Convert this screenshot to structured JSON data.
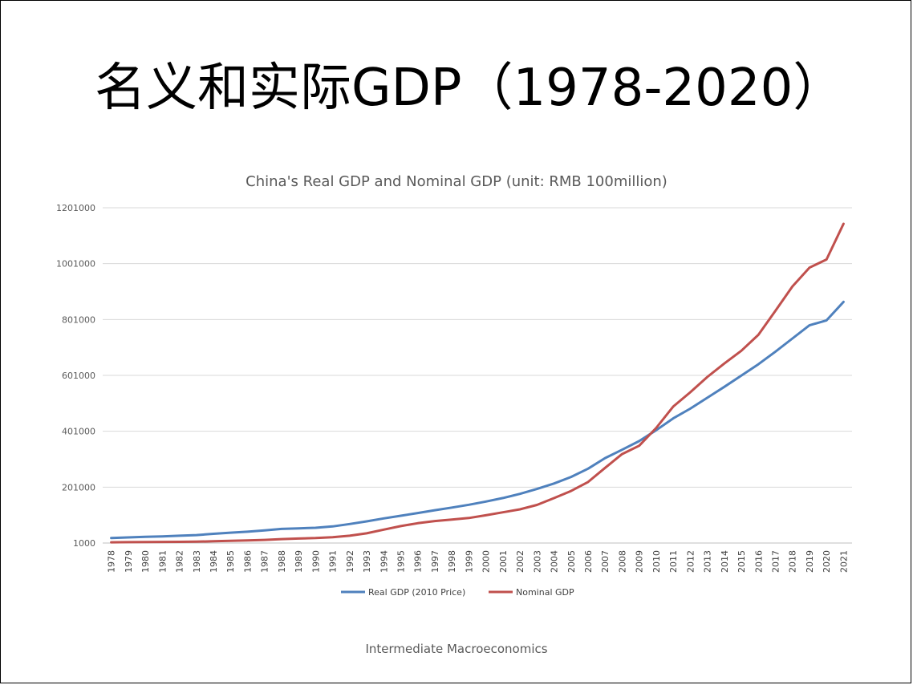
{
  "slide": {
    "title": "名义和实际GDP（1978-2020）",
    "footer": "Intermediate Macroeconomics"
  },
  "chart_data": {
    "type": "line",
    "title": "China's Real GDP and Nominal GDP (unit: RMB 100million)",
    "xlabel": "",
    "ylabel": "",
    "ylim": [
      1000,
      1201000
    ],
    "yticks": [
      1000,
      201000,
      401000,
      601000,
      801000,
      1001000,
      1201000
    ],
    "grid": true,
    "legend": "bottom",
    "categories": [
      "1978",
      "1979",
      "1980",
      "1981",
      "1982",
      "1983",
      "1984",
      "1985",
      "1986",
      "1987",
      "1988",
      "1989",
      "1990",
      "1991",
      "1992",
      "1993",
      "1994",
      "1995",
      "1996",
      "1997",
      "1998",
      "1999",
      "2000",
      "2001",
      "2002",
      "2003",
      "2004",
      "2005",
      "2006",
      "2007",
      "2008",
      "2009",
      "2010",
      "2011",
      "2012",
      "2013",
      "2014",
      "2015",
      "2016",
      "2017",
      "2018",
      "2019",
      "2020",
      "2021"
    ],
    "series": [
      {
        "name": "Real GDP (2010 Price)",
        "color": "#4F81BD",
        "values": [
          19000,
          21000,
          23000,
          24500,
          27000,
          29500,
          34000,
          38000,
          41500,
          46000,
          51500,
          53500,
          55500,
          60500,
          69000,
          78500,
          89000,
          98500,
          108500,
          118500,
          128000,
          138000,
          149500,
          162000,
          177000,
          194500,
          214000,
          237500,
          267000,
          305000,
          335000,
          366000,
          405000,
          447000,
          482000,
          521000,
          560000,
          600000,
          641000,
          686000,
          733000,
          780000,
          798000,
          864000
        ]
      },
      {
        "name": "Nominal GDP",
        "color": "#C0504D",
        "values": [
          3700,
          4100,
          4600,
          4900,
          5400,
          6000,
          7300,
          9100,
          10400,
          12200,
          15200,
          17200,
          18900,
          22000,
          27200,
          35700,
          48800,
          61500,
          71800,
          79700,
          85200,
          90600,
          100300,
          111000,
          121700,
          137400,
          161800,
          187300,
          219400,
          270100,
          319500,
          349100,
          413000,
          489300,
          540400,
          595200,
          643600,
          689100,
          746400,
          832000,
          919300,
          986500,
          1015900,
          1143700
        ]
      }
    ]
  }
}
